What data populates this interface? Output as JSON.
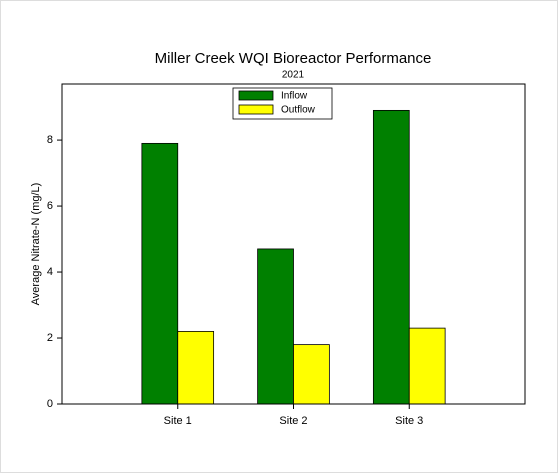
{
  "chart_data": {
    "type": "bar",
    "title": "Miller Creek WQI Bioreactor Performance",
    "subtitle": "2021",
    "y_label": "Average Nitrate-N (mg/L)",
    "categories": [
      "Site 1",
      "Site 2",
      "Site 3"
    ],
    "series": [
      {
        "name": "Inflow",
        "color": "#008000",
        "values": [
          7.9,
          4.7,
          8.9
        ]
      },
      {
        "name": "Outflow",
        "color": "#ffff00",
        "values": [
          2.2,
          1.8,
          2.3
        ]
      }
    ],
    "ylim": [
      0,
      9.7
    ],
    "yticks": [
      0,
      2,
      4,
      6,
      8
    ],
    "legend": "top"
  }
}
